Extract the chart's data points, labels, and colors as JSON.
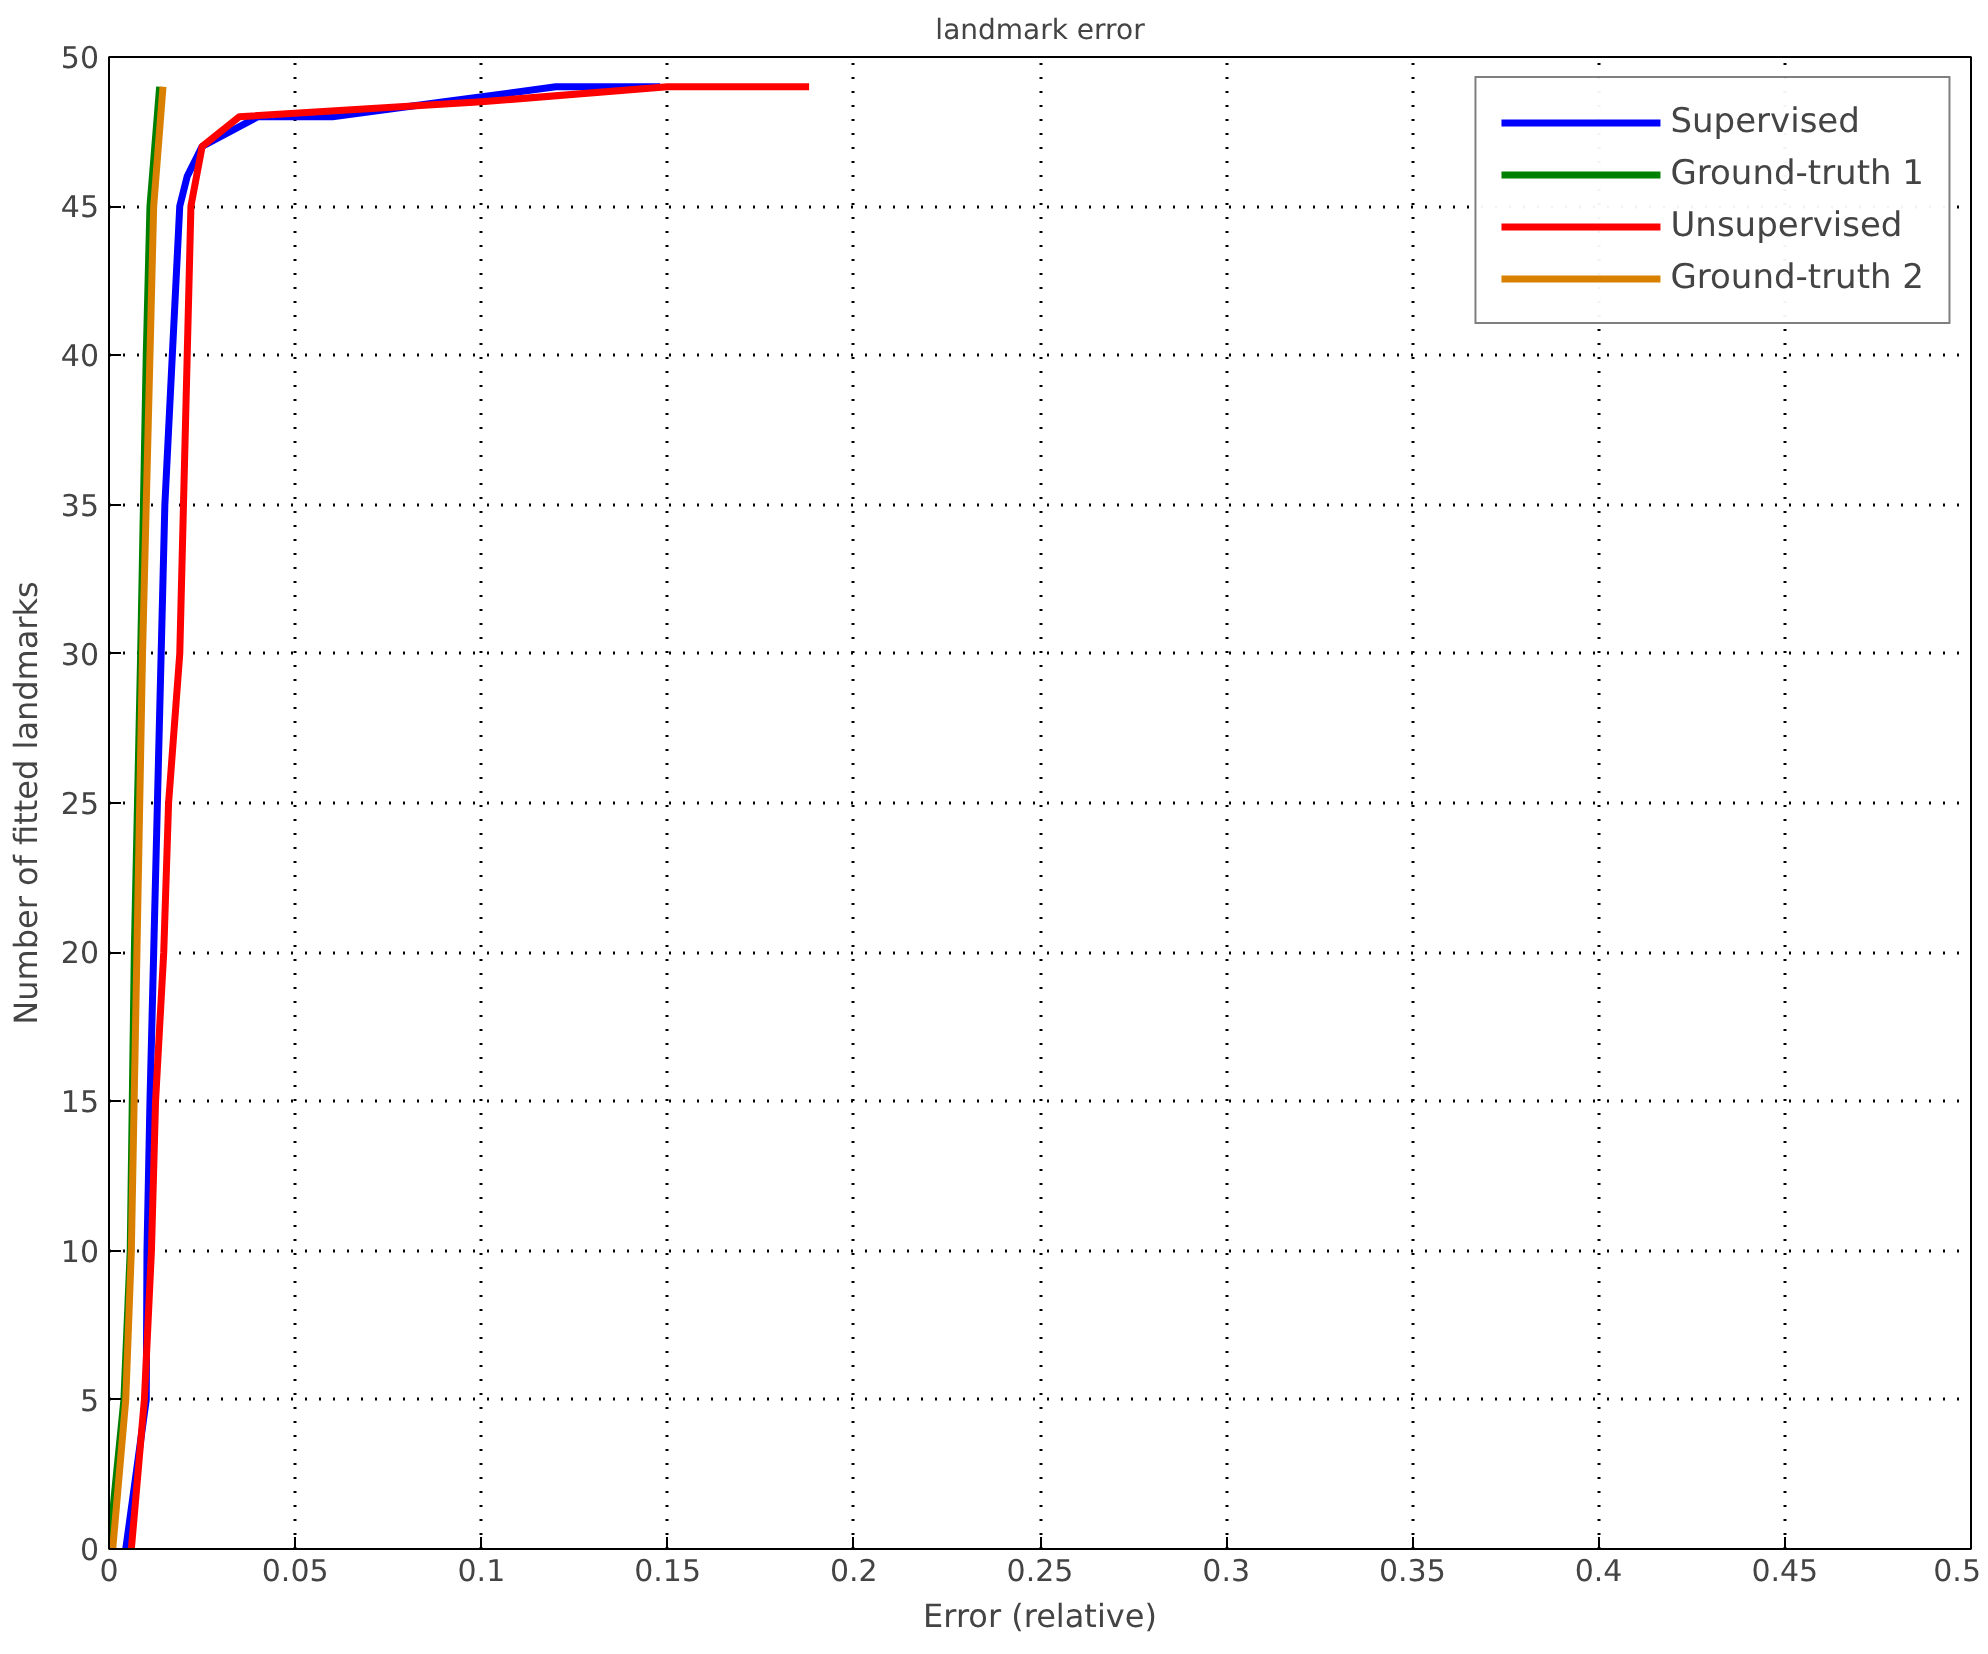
{
  "chart_data": {
    "type": "line",
    "title": "landmark error",
    "xlabel": "Error (relative)",
    "ylabel": "Number of fitted landmarks",
    "xlim": [
      0,
      0.5
    ],
    "ylim": [
      0,
      50
    ],
    "xticks": [
      0,
      0.05,
      0.1,
      0.15,
      0.2,
      0.25,
      0.3,
      0.35,
      0.4,
      0.45,
      0.5
    ],
    "yticks": [
      0,
      5,
      10,
      15,
      20,
      25,
      30,
      35,
      40,
      45,
      50
    ],
    "grid": true,
    "legend": "top right",
    "line_style": "solid",
    "series": [
      {
        "name": "Supervised",
        "color": "#0000ff",
        "x": [
          0.0045,
          0.01,
          0.0102,
          0.011,
          0.012,
          0.013,
          0.014,
          0.015,
          0.017,
          0.019,
          0.021,
          0.025,
          0.04,
          0.06,
          0.09,
          0.12,
          0.148
        ],
        "values": [
          0,
          5,
          10,
          15,
          20,
          25,
          30,
          35,
          40,
          45,
          46,
          47,
          48,
          48,
          48.5,
          49,
          49
        ]
      },
      {
        "name": "Ground-truth 1",
        "color": "#008000",
        "x": [
          0,
          0.004,
          0.0057,
          0.0068,
          0.0085,
          0.01,
          0.011,
          0.0136
        ],
        "values": [
          0,
          5,
          10,
          20,
          30,
          40,
          45,
          49
        ]
      },
      {
        "name": "Unsupervised",
        "color": "#ff0000",
        "x": [
          0.006,
          0.0095,
          0.0114,
          0.0125,
          0.0147,
          0.016,
          0.019,
          0.02,
          0.021,
          0.022,
          0.025,
          0.035,
          0.1,
          0.15,
          0.188
        ],
        "values": [
          0,
          5,
          10,
          15,
          20,
          25,
          30,
          35,
          40,
          45,
          47,
          48,
          48.5,
          49,
          49
        ]
      },
      {
        "name": "Ground-truth 2",
        "color": "#d98000",
        "x": [
          0.001,
          0.0045,
          0.006,
          0.0075,
          0.009,
          0.011,
          0.012,
          0.0145
        ],
        "values": [
          0,
          5,
          10,
          20,
          30,
          40,
          45,
          49
        ]
      }
    ]
  }
}
